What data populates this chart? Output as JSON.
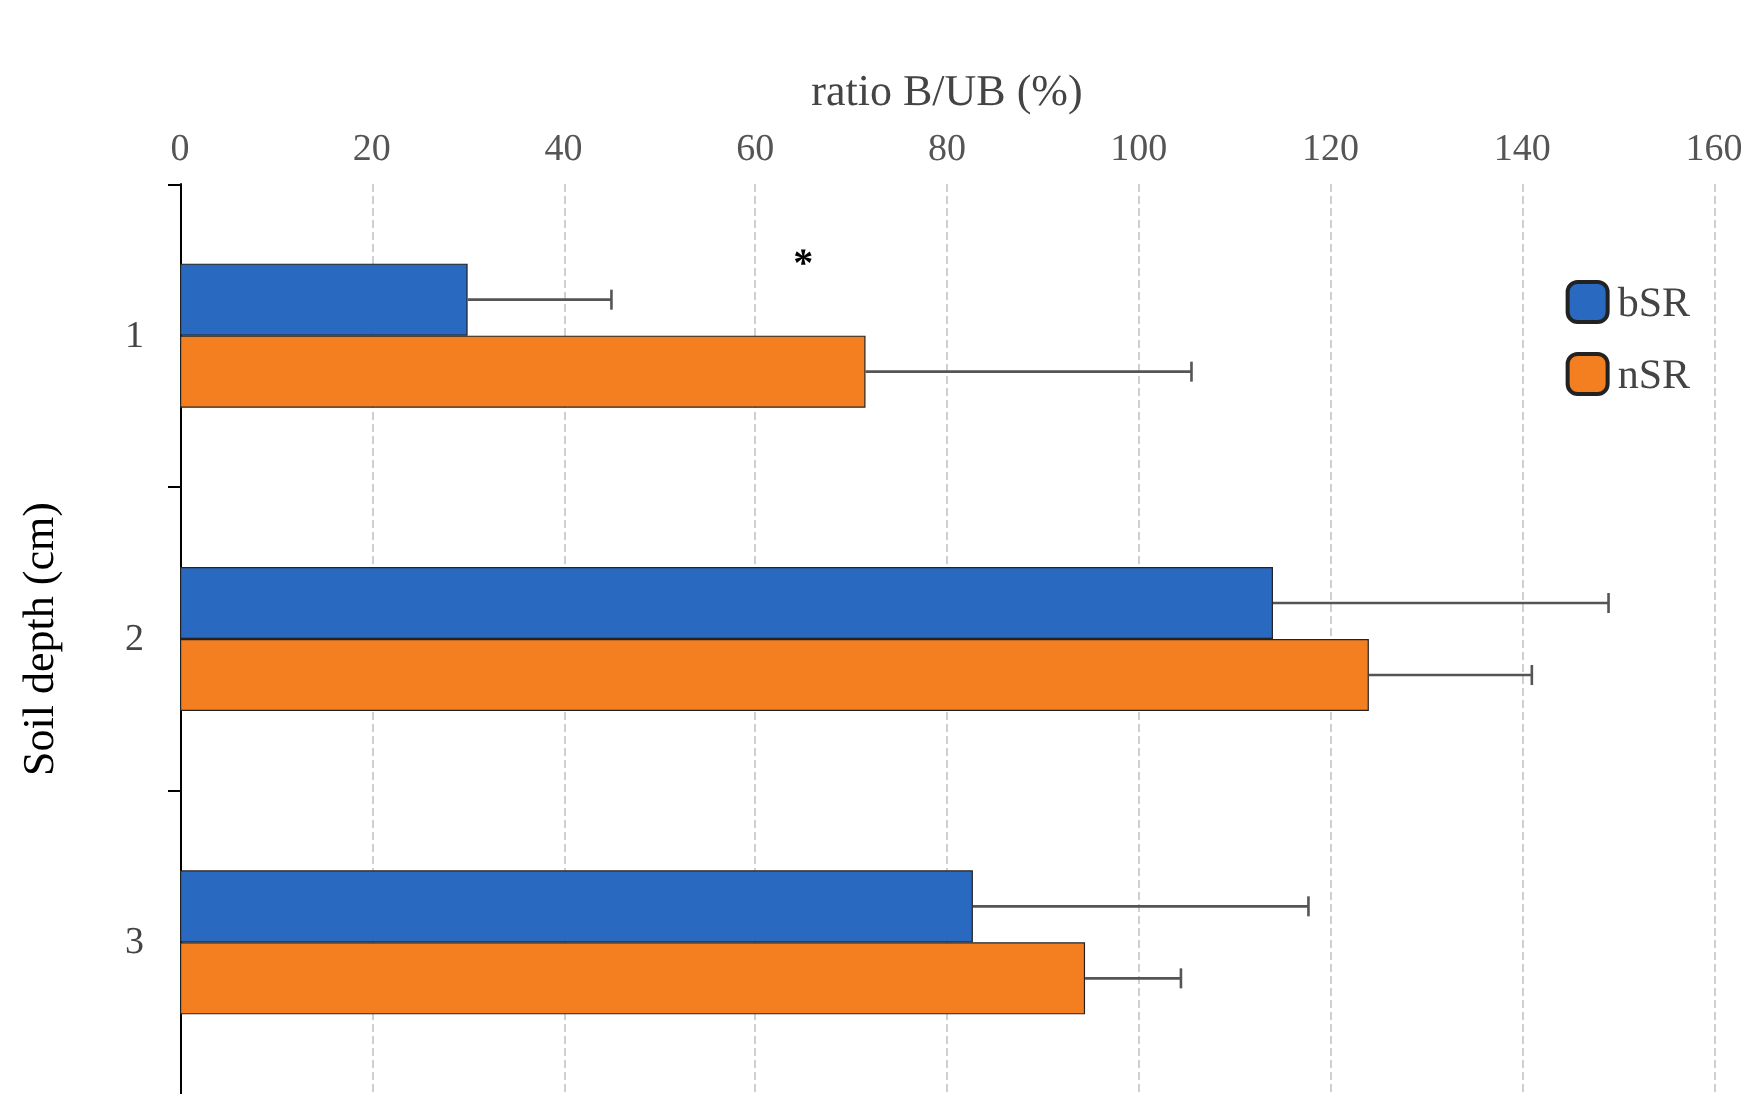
{
  "chart_data": {
    "type": "bar",
    "orientation": "horizontal",
    "xlabel": "ratio B/UB (%)",
    "ylabel": "Soil depth (cm)",
    "categories": [
      "1",
      "2",
      "3"
    ],
    "series": [
      {
        "name": "bSR",
        "color": "#2a69c0",
        "values": [
          30,
          114,
          82.7
        ],
        "errors": [
          [
            30,
            45
          ],
          [
            114,
            149
          ],
          [
            82.7,
            117.7
          ]
        ]
      },
      {
        "name": "nSR",
        "color": "#f47f20",
        "values": [
          71.5,
          124,
          94.4
        ],
        "errors": [
          [
            71.5,
            105.5
          ],
          [
            124,
            141
          ],
          [
            94.4,
            104.4
          ]
        ]
      }
    ],
    "xlim": [
      0,
      160
    ],
    "xticks": [
      0,
      20,
      40,
      60,
      80,
      100,
      120,
      140,
      160
    ],
    "grid": "x",
    "legend": "top right",
    "annotations": [
      {
        "text": "*",
        "x": 65,
        "y": "1"
      }
    ]
  }
}
